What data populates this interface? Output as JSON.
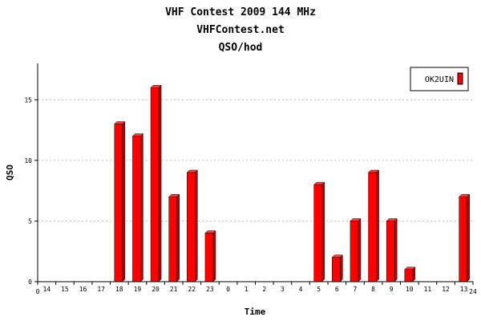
{
  "chart_data": {
    "type": "bar",
    "title": "VHF Contest 2009 144 MHz",
    "subtitle": "VHFContest.net",
    "subtitle2": "QSO/hod",
    "xlabel": "Time",
    "ylabel": "QSO",
    "ylim": [
      0,
      18
    ],
    "y_ticks": [
      0,
      5,
      10,
      15
    ],
    "grid": true,
    "legend_position": "top-right",
    "x_axis_start_label": "0",
    "x_axis_end_label": "24",
    "categories": [
      "14",
      "15",
      "16",
      "17",
      "18",
      "19",
      "20",
      "21",
      "22",
      "23",
      "0",
      "1",
      "2",
      "3",
      "4",
      "5",
      "6",
      "7",
      "8",
      "9",
      "10",
      "11",
      "12",
      "13"
    ],
    "series": [
      {
        "name": "OK2UIN",
        "color": "#ff0000",
        "values": [
          0,
          0,
          0,
          0,
          13,
          12,
          16,
          7,
          9,
          4,
          0,
          0,
          0,
          0,
          0,
          8,
          2,
          5,
          9,
          5,
          1,
          0,
          0,
          7
        ]
      }
    ]
  }
}
